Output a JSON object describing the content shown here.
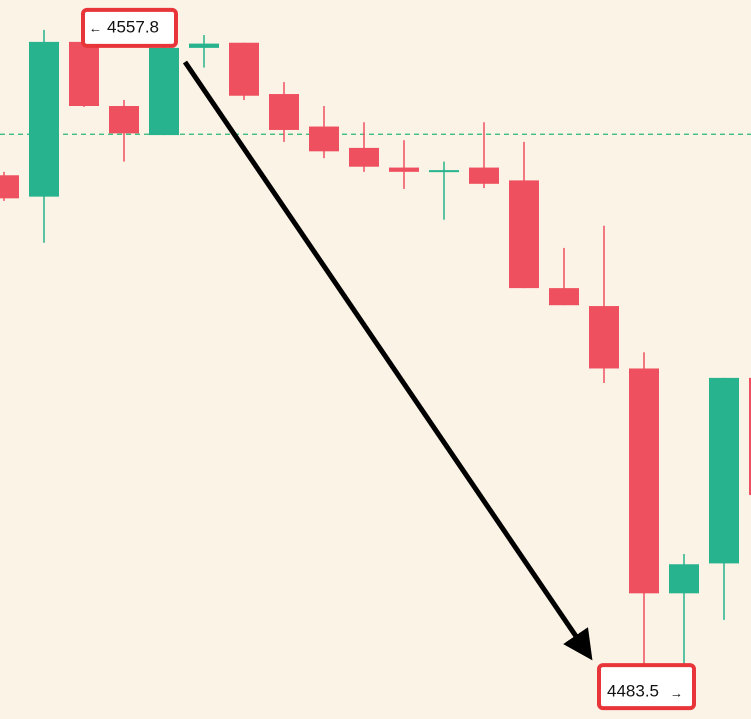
{
  "chart_data": {
    "type": "candlestick",
    "categories": [
      null,
      null,
      null,
      null,
      null,
      null,
      null,
      null,
      null,
      null,
      null,
      null,
      null,
      null,
      null,
      null,
      null,
      null,
      null,
      null
    ],
    "open": [
      4540.8,
      4538.3,
      4556.4,
      4548.9,
      4545.5,
      4555.7,
      4556.3,
      4550.3,
      4546.5,
      4544.0,
      4541.7,
      4541.2,
      4541.7,
      4540.2,
      4527.6,
      4525.5,
      4518.2,
      4491.9,
      4495.4,
      4517.1
    ],
    "high": [
      4541.2,
      4557.8,
      4556.4,
      4549.6,
      4555.9,
      4557.2,
      4556.3,
      4551.7,
      4548.9,
      4547.0,
      4544.9,
      4542.4,
      4547.0,
      4544.7,
      4532.3,
      4534.9,
      4520.1,
      4496.5,
      4517.1,
      4517.1
    ],
    "low": [
      4537.8,
      4532.9,
      4548.8,
      4542.4,
      4545.5,
      4553.4,
      4549.6,
      4544.7,
      4542.8,
      4541.2,
      4539.2,
      4535.6,
      4539.3,
      4527.6,
      4525.6,
      4516.5,
      4483.5,
      4483.5,
      4488.8,
      4503.4
    ],
    "close": [
      4538.1,
      4556.4,
      4548.9,
      4545.7,
      4555.7,
      4556.2,
      4550.1,
      4546.1,
      4543.6,
      4541.8,
      4541.2,
      4541.4,
      4539.8,
      4527.6,
      4525.6,
      4518.2,
      4491.9,
      4495.3,
      4517.1,
      4503.4
    ],
    "up_color": "#26b38d",
    "down_color": "#ef5060",
    "ylim": [
      4477.2,
      4561.3
    ],
    "reference_line": 4545.6,
    "high_label": 4557.8,
    "low_label": 4483.5
  }
}
